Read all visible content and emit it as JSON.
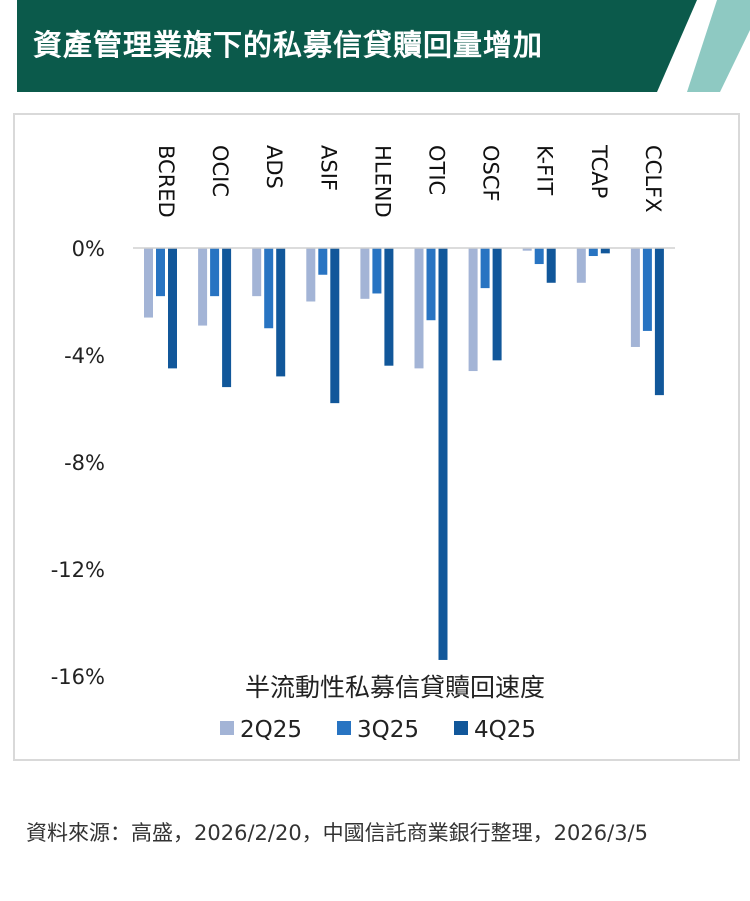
{
  "header": {
    "title": "資產管理業旗下的私募信貸贖回量增加",
    "bg_color": "#0b5a4b",
    "accent_color": "#8ec9c2"
  },
  "chart_data": {
    "type": "bar",
    "title": "半流動性私募信貸贖回速度",
    "categories": [
      "BCRED",
      "OCIC",
      "ADS",
      "ASIF",
      "HLEND",
      "OTIC",
      "OSCF",
      "K-FIT",
      "TCAP",
      "CCLFX"
    ],
    "series": [
      {
        "name": "2Q25",
        "color": "#a3b4d6",
        "values": [
          -2.6,
          -2.9,
          -1.8,
          -2.0,
          -1.9,
          -4.5,
          -4.6,
          -0.1,
          -1.3,
          -3.7
        ]
      },
      {
        "name": "3Q25",
        "color": "#2874c2",
        "values": [
          -1.8,
          -1.8,
          -3.0,
          -1.0,
          -1.7,
          -2.7,
          -1.5,
          -0.6,
          -0.3,
          -3.1
        ]
      },
      {
        "name": "4Q25",
        "color": "#11579a",
        "values": [
          -4.5,
          -5.2,
          -4.8,
          -5.8,
          -4.4,
          -15.4,
          -4.2,
          -1.3,
          -0.2,
          -5.5
        ]
      }
    ],
    "yticks": [
      0,
      -4,
      -8,
      -12,
      -16
    ],
    "ytick_labels": [
      "0%",
      "-4%",
      "-8%",
      "-12%",
      "-16%"
    ],
    "ylim": [
      -16,
      0
    ],
    "xlabel": "",
    "ylabel": "",
    "legend": "bottom-center",
    "grid": false
  },
  "source": "資料來源：高盛，2026/2/20，中國信託商業銀行整理，2026/3/5"
}
